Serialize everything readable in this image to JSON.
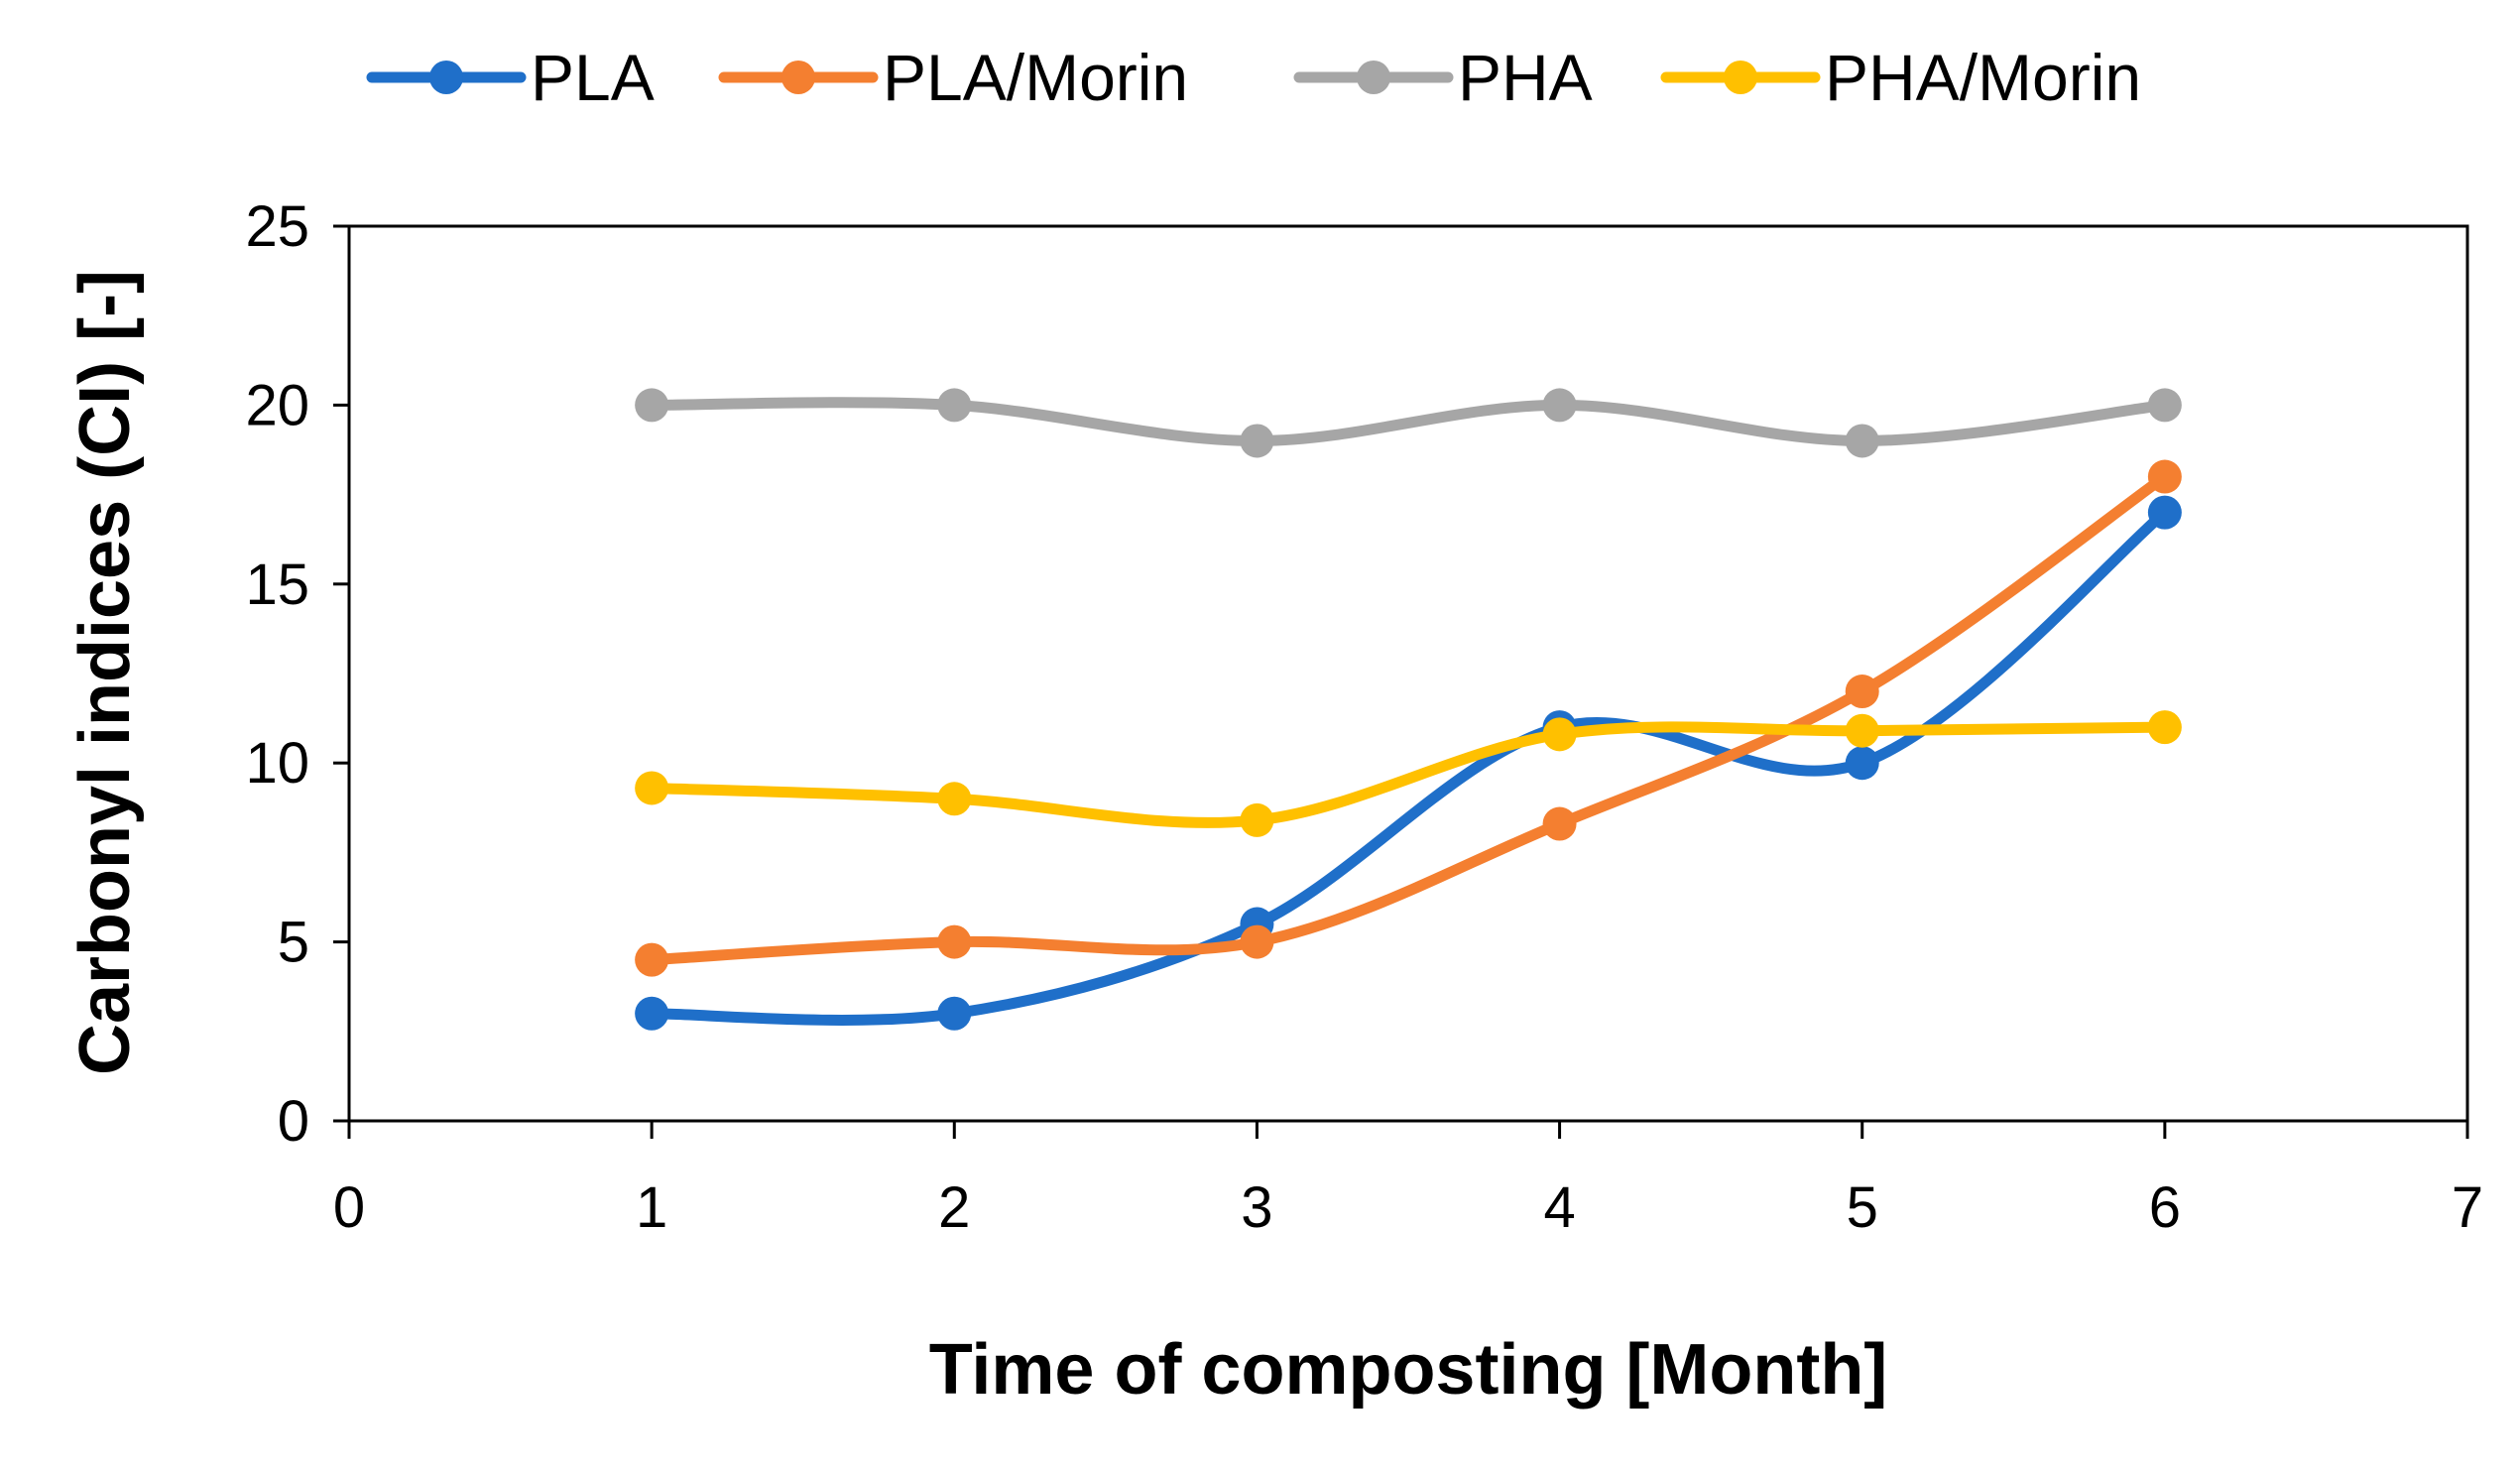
{
  "chart_data": {
    "type": "line",
    "smoothed": true,
    "xlabel": "Time of composting [Month]",
    "ylabel": "Carbonyl indices (CI) [-]",
    "xlim": [
      0,
      7
    ],
    "ylim": [
      0,
      25
    ],
    "xticks": [
      0,
      1,
      2,
      3,
      4,
      5,
      6,
      7
    ],
    "yticks": [
      0,
      5,
      10,
      15,
      20,
      25
    ],
    "grid": false,
    "legend_position": "top",
    "x": [
      1,
      2,
      3,
      4,
      5,
      6
    ],
    "series": [
      {
        "name": "PLA",
        "color": "#1F6FC9",
        "values": [
          3.0,
          3.0,
          5.5,
          11.0,
          10.0,
          17.0
        ]
      },
      {
        "name": "PLA/Morin",
        "color": "#F47F30",
        "values": [
          4.5,
          5.0,
          5.0,
          8.3,
          12.0,
          18.0
        ]
      },
      {
        "name": "PHA",
        "color": "#A6A6A6",
        "values": [
          20.0,
          20.0,
          19.0,
          20.0,
          19.0,
          20.0
        ]
      },
      {
        "name": "PHA/Morin",
        "color": "#FFC000",
        "values": [
          9.3,
          9.0,
          8.4,
          10.8,
          10.9,
          11.0
        ]
      }
    ]
  }
}
